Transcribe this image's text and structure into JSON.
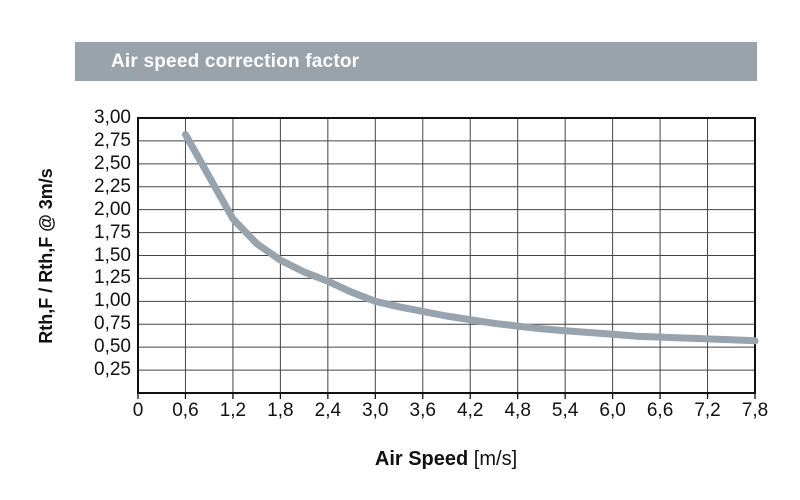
{
  "header": {
    "title": "Air speed correction factor",
    "bg_color": "#99a3ab",
    "text_color": "#ffffff"
  },
  "chart_data": {
    "type": "line",
    "title": "Air speed correction factor",
    "xlabel": "Air Speed",
    "xlabel_unit": " [m/s]",
    "ylabel": "Rth,F / Rth,F @ 3m/s",
    "xlim": [
      0,
      7.8
    ],
    "ylim": [
      0,
      3.0
    ],
    "x_major_step": 0.6,
    "y_major_step": 0.25,
    "grid": true,
    "legend": false,
    "x_tick_labels": [
      "0",
      "0,6",
      "1,2",
      "1,8",
      "2,4",
      "3,0",
      "3,6",
      "4,2",
      "4,8",
      "5,4",
      "6,0",
      "6,6",
      "7,2",
      "7,8"
    ],
    "y_tick_labels": [
      "3,00",
      "2,75",
      "2,50",
      "2,25",
      "2,00",
      "1,75",
      "1,50",
      "1,25",
      "1,00",
      "0,75",
      "0,50",
      "0,25"
    ],
    "series": [
      {
        "name": "Rth,F / Rth,F @ 3m/s correction factor",
        "color": "#97a3ad",
        "x": [
          0.6,
          1.2,
          1.8,
          2.4,
          3.0,
          3.6,
          4.2,
          4.8,
          5.4,
          6.0,
          6.6,
          7.2,
          7.8
        ],
        "y": [
          2.82,
          1.9,
          1.45,
          1.22,
          1.0,
          0.89,
          0.8,
          0.73,
          0.68,
          0.64,
          0.61,
          0.59,
          0.57
        ]
      }
    ],
    "curve_points": [
      [
        0.6,
        2.82
      ],
      [
        1.2,
        1.9
      ],
      [
        1.5,
        1.63
      ],
      [
        1.8,
        1.45
      ],
      [
        2.1,
        1.32
      ],
      [
        2.4,
        1.22
      ],
      [
        2.7,
        1.1
      ],
      [
        3.0,
        1.0
      ],
      [
        3.3,
        0.94
      ],
      [
        3.6,
        0.89
      ],
      [
        3.9,
        0.84
      ],
      [
        4.2,
        0.8
      ],
      [
        4.5,
        0.76
      ],
      [
        4.8,
        0.73
      ],
      [
        5.1,
        0.7
      ],
      [
        5.4,
        0.68
      ],
      [
        5.7,
        0.66
      ],
      [
        6.0,
        0.64
      ],
      [
        6.3,
        0.62
      ],
      [
        6.6,
        0.61
      ],
      [
        6.9,
        0.6
      ],
      [
        7.2,
        0.59
      ],
      [
        7.5,
        0.58
      ],
      [
        7.8,
        0.57
      ]
    ],
    "colors": {
      "line": "#97a3ad",
      "grid": "#444444",
      "border": "#111111",
      "text": "#111111"
    }
  }
}
